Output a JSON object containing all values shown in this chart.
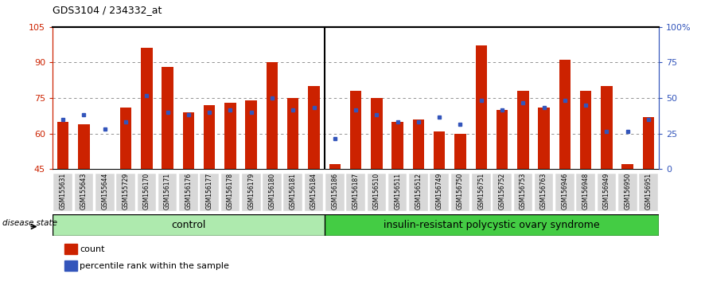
{
  "title": "GDS3104 / 234332_at",
  "samples": [
    "GSM155631",
    "GSM155643",
    "GSM155644",
    "GSM155729",
    "GSM156170",
    "GSM156171",
    "GSM156176",
    "GSM156177",
    "GSM156178",
    "GSM156179",
    "GSM156180",
    "GSM156181",
    "GSM156184",
    "GSM156186",
    "GSM156187",
    "GSM156510",
    "GSM156511",
    "GSM156512",
    "GSM156749",
    "GSM156750",
    "GSM156751",
    "GSM156752",
    "GSM156753",
    "GSM156763",
    "GSM156946",
    "GSM156948",
    "GSM156949",
    "GSM156950",
    "GSM156951"
  ],
  "red_values": [
    65,
    64,
    45,
    71,
    96,
    88,
    69,
    72,
    73,
    74,
    90,
    75,
    80,
    47,
    78,
    75,
    65,
    66,
    61,
    60,
    97,
    70,
    78,
    71,
    91,
    78,
    80,
    47,
    67
  ],
  "blue_values": [
    66,
    68,
    62,
    65,
    76,
    69,
    68,
    69,
    70,
    69,
    75,
    70,
    71,
    58,
    70,
    68,
    65,
    65,
    67,
    64,
    74,
    70,
    73,
    71,
    74,
    72,
    61,
    61,
    66
  ],
  "control_count": 13,
  "disease_state_label": "disease state",
  "control_label": "control",
  "disease_label": "insulin-resistant polycystic ovary syndrome",
  "ymin": 45,
  "ymax": 105,
  "yticks_left": [
    45,
    60,
    75,
    90,
    105
  ],
  "grid_lines": [
    60,
    75,
    90
  ],
  "right_tick_vals": [
    0,
    25,
    50,
    75,
    100
  ],
  "right_tick_labels": [
    "0",
    "25",
    "50",
    "75",
    "100%"
  ],
  "bar_color": "#cc2200",
  "blue_color": "#3355bb",
  "legend_count_label": "count",
  "legend_pct_label": "percentile rank within the sample"
}
